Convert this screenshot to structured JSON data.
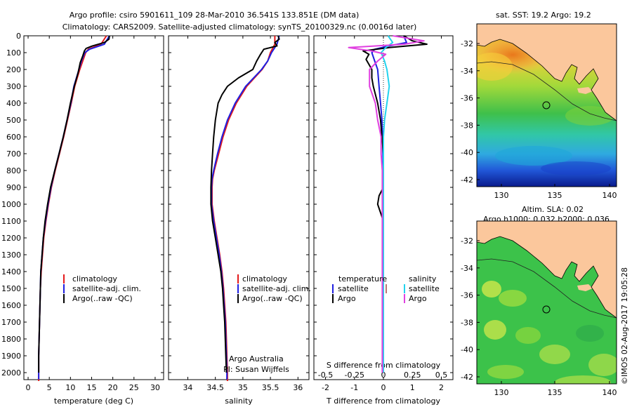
{
  "header": {
    "title_line1": "Argo profile: csiro 5901611_109 28-Mar-2010 36.541S 133.851E (DM data)",
    "title_line2": "Climatology: CARS2009. Satellite-adjusted climatology: synTS_20100329.nc (0.0016d later)"
  },
  "colors": {
    "climatology": "#e41a1c",
    "satellite_adj": "#1f1fe0",
    "argo": "#000000",
    "salinity_satellite": "#22d3ee",
    "salinity_argo": "#e040e0",
    "land": "#fbc79c"
  },
  "depth_axis": {
    "ticks": [
      "0",
      "100",
      "200",
      "300",
      "400",
      "500",
      "600",
      "700",
      "800",
      "900",
      "1000",
      "1100",
      "1200",
      "1300",
      "1400",
      "1500",
      "1600",
      "1700",
      "1800",
      "1900",
      "2000"
    ]
  },
  "legend_labels": {
    "climatology": "climatology",
    "satellite": "satellite-adj. clim.",
    "argo": "Argo(..raw -QC)"
  },
  "credits": {
    "line1": "Argo Australia",
    "line2": "PI: Susan Wijffels"
  },
  "diff_legend": {
    "temperature": "temperature",
    "salinity": "salinity",
    "satellite": "satellite",
    "argo": "Argo"
  },
  "maps": {
    "sst_title": "sat. SST: 19.2 Argo: 19.2",
    "sla_title1": "Altim. SLA: 0.02",
    "sla_title2": "Argo h1000: 0.032 h2000: 0.036",
    "lat_ticks": [
      "-32",
      "-34",
      "-36",
      "-38",
      "-40",
      "-42"
    ],
    "lon_ticks": [
      "130",
      "135",
      "140"
    ]
  },
  "stamp": "©IMOS 02-Aug-2017 19:05:28",
  "chart_data": [
    {
      "type": "line",
      "xlabel": "temperature (deg C)",
      "xlim": [
        -1,
        32
      ],
      "ylim": [
        2050,
        0
      ],
      "xticks": [
        "0",
        "5",
        "10",
        "15",
        "20",
        "25",
        "30"
      ],
      "series": [
        {
          "name": "climatology",
          "depth": [
            0,
            50,
            80,
            100,
            150,
            200,
            300,
            400,
            500,
            600,
            700,
            800,
            900,
            1000,
            1100,
            1200,
            1300,
            1400,
            1500,
            1600,
            1700,
            1800,
            1900,
            2000,
            2050
          ],
          "values": [
            18.5,
            17.2,
            14.2,
            13.6,
            12.9,
            12.2,
            11.0,
            10.2,
            9.3,
            8.4,
            7.4,
            6.4,
            5.5,
            4.8,
            4.2,
            3.7,
            3.4,
            3.1,
            2.9,
            2.8,
            2.7,
            2.6,
            2.5,
            2.5,
            2.5
          ]
        },
        {
          "name": "satellite-adj. clim.",
          "depth": [
            0,
            50,
            80,
            100,
            150,
            200,
            300,
            400,
            500,
            600,
            700,
            800,
            900,
            1000,
            1100,
            1200,
            1300,
            1400,
            1500,
            1600,
            1700,
            1800,
            1900,
            2000,
            2040
          ],
          "values": [
            19.2,
            18.0,
            14.5,
            13.4,
            12.6,
            12.0,
            10.8,
            10.1,
            9.2,
            8.3,
            7.3,
            6.3,
            5.4,
            4.7,
            4.1,
            3.6,
            3.3,
            3.0,
            2.9,
            2.8,
            2.7,
            2.6,
            2.5,
            2.5,
            2.5
          ]
        },
        {
          "name": "Argo(..raw -QC)",
          "depth": [
            0,
            20,
            40,
            60,
            75,
            90,
            120,
            160,
            220,
            300,
            400,
            500,
            600,
            700,
            800,
            900,
            1000,
            1100,
            1200,
            1300,
            1400,
            1500,
            1600,
            1700,
            1800,
            1900,
            2000
          ],
          "values": [
            19.2,
            19.1,
            18.0,
            15.2,
            13.7,
            13.3,
            12.9,
            12.3,
            11.8,
            10.9,
            10.0,
            9.2,
            8.3,
            7.3,
            6.3,
            5.3,
            4.6,
            4.0,
            3.6,
            3.3,
            3.0,
            2.9,
            2.8,
            2.7,
            2.6,
            2.5,
            2.5
          ]
        }
      ]
    },
    {
      "type": "line",
      "xlabel": "salinity",
      "xlim": [
        33.65,
        36.2
      ],
      "ylim": [
        2050,
        0
      ],
      "xticks": [
        "34",
        "34.5",
        "35",
        "35.5",
        "36"
      ],
      "series": [
        {
          "name": "climatology",
          "depth": [
            0,
            50,
            100,
            150,
            200,
            300,
            400,
            500,
            600,
            700,
            800,
            850,
            900,
            1000,
            1100,
            1200,
            1300,
            1400,
            1500,
            1600,
            1700,
            1800,
            1900,
            2000,
            2050
          ],
          "values": [
            35.58,
            35.58,
            35.5,
            35.45,
            35.35,
            35.07,
            34.88,
            34.74,
            34.64,
            34.56,
            34.48,
            34.45,
            34.44,
            34.44,
            34.48,
            34.53,
            34.58,
            34.62,
            34.65,
            34.67,
            34.69,
            34.7,
            34.71,
            34.72,
            34.72
          ]
        },
        {
          "name": "satellite-adj. clim.",
          "depth": [
            0,
            50,
            100,
            150,
            200,
            300,
            400,
            500,
            600,
            700,
            800,
            850,
            900,
            1000,
            1100,
            1200,
            1300,
            1400,
            1500,
            1600,
            1700,
            1800,
            1900,
            2000,
            2040
          ],
          "values": [
            35.66,
            35.62,
            35.52,
            35.45,
            35.34,
            35.05,
            34.86,
            34.72,
            34.62,
            34.54,
            34.47,
            34.44,
            34.43,
            34.43,
            34.47,
            34.52,
            34.57,
            34.61,
            34.64,
            34.66,
            34.68,
            34.69,
            34.7,
            34.71,
            34.71
          ]
        },
        {
          "name": "Argo(..raw -QC)",
          "depth": [
            0,
            20,
            40,
            60,
            80,
            110,
            150,
            200,
            250,
            300,
            350,
            400,
            500,
            600,
            700,
            800,
            900,
            1000,
            1100,
            1200,
            1300,
            1400,
            1500,
            1600,
            1700,
            1800,
            1900,
            2000
          ],
          "values": [
            35.64,
            35.66,
            35.58,
            35.62,
            35.38,
            35.32,
            35.25,
            35.18,
            34.92,
            34.72,
            34.62,
            34.55,
            34.5,
            34.47,
            34.45,
            34.43,
            34.42,
            34.42,
            34.45,
            34.5,
            34.55,
            34.6,
            34.63,
            34.65,
            34.67,
            34.68,
            34.69,
            34.7
          ]
        }
      ]
    },
    {
      "type": "line",
      "xlabel": "T difference from climatology",
      "top_label": "S difference from climatology",
      "xlim": [
        -2.4,
        2.4
      ],
      "ylim": [
        2050,
        0
      ],
      "xticks": [
        "-2",
        "-1",
        "0",
        "1",
        "2"
      ],
      "top_ticks": [
        "-0.5",
        "-0.25",
        "0",
        "0.25",
        "0.5"
      ],
      "zero_line": true,
      "series": [
        {
          "name": "temperature satellite",
          "depth": [
            0,
            40,
            60,
            80,
            100,
            150,
            200,
            300,
            400,
            500,
            600,
            700,
            800,
            900,
            1000,
            1100,
            1200,
            1400,
            1600,
            1800,
            2000
          ],
          "values": [
            0.7,
            0.8,
            0.2,
            -0.3,
            -0.4,
            -0.3,
            -0.2,
            -0.15,
            -0.1,
            -0.05,
            -0.03,
            -0.02,
            -0.01,
            0,
            0,
            -0.02,
            -0.02,
            -0.01,
            0,
            0,
            0
          ]
        },
        {
          "name": "temperature Argo",
          "depth": [
            0,
            30,
            50,
            70,
            90,
            110,
            140,
            170,
            200,
            250,
            300,
            400,
            500,
            600,
            700,
            800,
            900,
            950,
            1000,
            1050,
            1100,
            1200,
            1400,
            1600,
            1800,
            2000
          ],
          "values": [
            0.7,
            1.0,
            1.5,
            0.2,
            -0.7,
            -0.5,
            -0.6,
            -0.5,
            -0.4,
            -0.4,
            -0.35,
            -0.2,
            -0.1,
            -0.05,
            0.0,
            0.0,
            0.0,
            -0.15,
            -0.2,
            -0.1,
            0.0,
            0.0,
            0.0,
            0.0,
            0.0,
            0.0
          ]
        },
        {
          "name": "salinity satellite",
          "depth": [
            0,
            40,
            70,
            100,
            150,
            200,
            300,
            400,
            500,
            600,
            800,
            1000,
            1200,
            1400,
            1600,
            1800,
            2000
          ],
          "values": [
            0.04,
            0.08,
            0.02,
            -0.02,
            0.01,
            0.03,
            0.05,
            0.03,
            0.01,
            0,
            0,
            0,
            0,
            0,
            0,
            0,
            0
          ]
        },
        {
          "name": "salinity Argo",
          "depth": [
            0,
            30,
            50,
            70,
            90,
            110,
            150,
            200,
            300,
            400,
            500,
            600,
            700,
            800,
            1000,
            1200,
            1400,
            1600,
            1800,
            2000
          ],
          "values": [
            0.08,
            0.35,
            0.18,
            -0.3,
            -0.1,
            0.02,
            -0.05,
            -0.12,
            -0.12,
            -0.07,
            -0.05,
            -0.02,
            -0.02,
            -0.01,
            -0.01,
            -0.01,
            -0.01,
            -0.01,
            -0.01,
            -0.01
          ]
        }
      ]
    }
  ]
}
